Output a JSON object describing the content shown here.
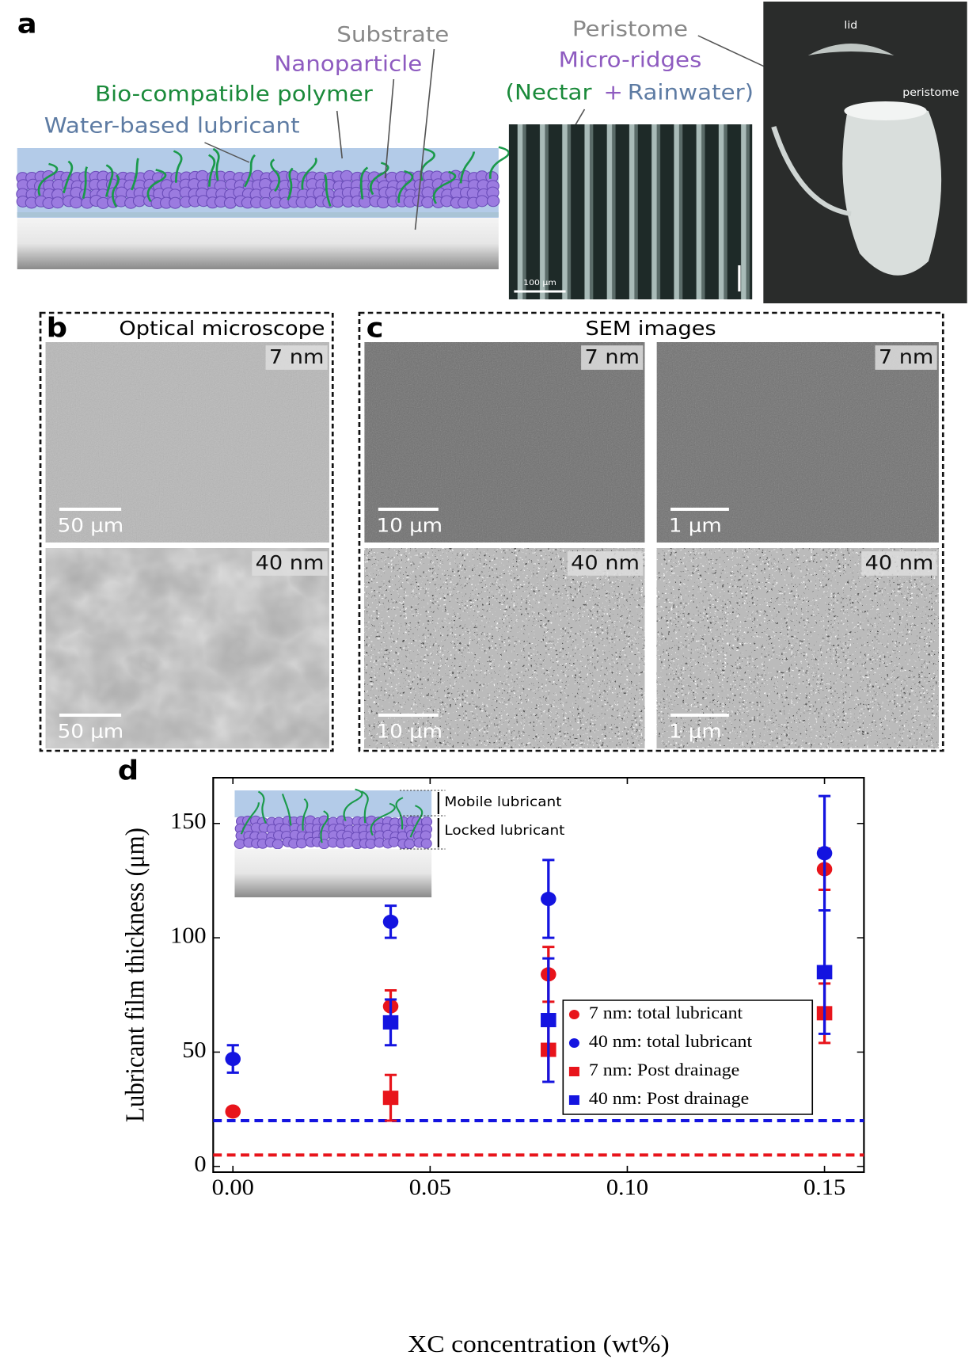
{
  "panel_a": {
    "label": "a",
    "diagram_labels": {
      "substrate": "Substrate",
      "nanoparticle": "Nanoparticle",
      "polymer": "Bio-compatible polymer",
      "lubricant": "Water-based lubricant"
    },
    "peristome": "Peristome",
    "micro_ridges": "Micro-ridges",
    "nectar": "(Nectar",
    "plus": "+",
    "rainwater": "Rainwater)",
    "scale_bar": "100 μm",
    "photo_labels": [
      "lid",
      "peristome"
    ]
  },
  "panel_b": {
    "label": "b",
    "title": "Optical microscope",
    "images": [
      {
        "tag": "7 nm",
        "scale_bar": "50 μm"
      },
      {
        "tag": "40 nm",
        "scale_bar": "50 μm"
      }
    ]
  },
  "panel_c": {
    "label": "c",
    "title": "SEM images",
    "images": [
      {
        "tag": "7 nm",
        "scale_bar": "10 μm"
      },
      {
        "tag": "7 nm",
        "scale_bar": "1 μm"
      },
      {
        "tag": "40 nm",
        "scale_bar": "10 μm"
      },
      {
        "tag": "40 nm",
        "scale_bar": "1 μm"
      }
    ]
  },
  "panel_d_label": "d",
  "chart_data": {
    "type": "scatter",
    "xlabel": "XC concentration (wt%)",
    "ylabel": "Lubricant film thickness (μm)",
    "x": [
      0,
      0.04,
      0.08,
      0.15
    ],
    "series": [
      {
        "name": "7 nm: total lubricant",
        "color": "#e8141b",
        "marker": "circle",
        "values": [
          24,
          70,
          84,
          130
        ],
        "errors": [
          1.5,
          7,
          12,
          9
        ]
      },
      {
        "name": "40 nm: total lubricant",
        "color": "#1414e0",
        "marker": "circle",
        "values": [
          47,
          107,
          117,
          137
        ],
        "errors": [
          6,
          7,
          17,
          25
        ]
      },
      {
        "name": "7 nm: Post drainage",
        "color": "#e8141b",
        "marker": "square",
        "values": [
          null,
          30,
          51,
          67
        ],
        "errors": [
          null,
          10,
          14,
          13
        ]
      },
      {
        "name": "40 nm: Post drainage",
        "color": "#1414e0",
        "marker": "square",
        "values": [
          null,
          63,
          64,
          85
        ],
        "errors": [
          null,
          10,
          27,
          27
        ]
      }
    ],
    "reference_lines": [
      {
        "y": 20,
        "color": "#1414e0"
      },
      {
        "y": 5,
        "color": "#e8141b"
      }
    ],
    "xlim": [
      -0.005,
      0.16
    ],
    "ylim": [
      -2.5,
      170
    ],
    "xticks": [
      {
        "value": 0,
        "label": "0.00"
      },
      {
        "value": 0.05,
        "label": "0.05"
      },
      {
        "value": 0.1,
        "label": "0.10"
      },
      {
        "value": 0.15,
        "label": "0.15"
      }
    ],
    "yticks": [
      0,
      50,
      100,
      150
    ],
    "legend": "center right",
    "inset_labels": [
      "Mobile lubricant",
      "Locked lubricant"
    ]
  }
}
